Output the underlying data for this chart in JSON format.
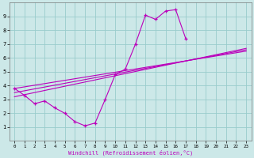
{
  "xlabel": "Windchill (Refroidissement éolien,°C)",
  "background_color": "#cce8e8",
  "grid_color": "#99cccc",
  "line_color": "#bb00bb",
  "xlim": [
    -0.5,
    23.5
  ],
  "ylim": [
    0,
    10
  ],
  "xticks": [
    0,
    1,
    2,
    3,
    4,
    5,
    6,
    7,
    8,
    9,
    10,
    11,
    12,
    13,
    14,
    15,
    16,
    17,
    18,
    19,
    20,
    21,
    22,
    23
  ],
  "yticks": [
    1,
    2,
    3,
    4,
    5,
    6,
    7,
    8,
    9
  ],
  "main_x": [
    0,
    1,
    2,
    3,
    4,
    5,
    6,
    7,
    8,
    9,
    10,
    11,
    12,
    13,
    14,
    15,
    16,
    17
  ],
  "main_y": [
    3.8,
    3.3,
    2.7,
    2.9,
    2.4,
    2.0,
    1.4,
    1.1,
    1.3,
    3.0,
    4.8,
    5.2,
    7.0,
    9.1,
    8.8,
    9.4,
    9.5,
    7.4
  ],
  "trend1_x": [
    0,
    23
  ],
  "trend1_y": [
    3.8,
    6.5
  ],
  "trend2_x": [
    0,
    23
  ],
  "trend2_y": [
    3.5,
    6.6
  ],
  "trend3_x": [
    0,
    23
  ],
  "trend3_y": [
    3.2,
    6.7
  ]
}
